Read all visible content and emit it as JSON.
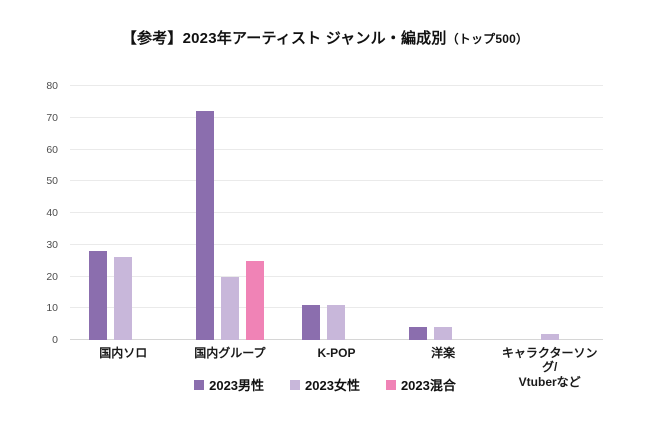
{
  "header": {
    "title_main": "【参考】2023年アーティスト ジャンル・編成別",
    "title_suffix": "（トップ500）"
  },
  "colors": {
    "male": "#8b6eae",
    "female": "#c8b7da",
    "mixed": "#f083b6",
    "grid": "#eaeaea",
    "baseline": "#d6d6d6",
    "tick_text": "#4d4d4d",
    "label_text": "#1a1a1a"
  },
  "chart_data": {
    "type": "bar",
    "title": "【参考】2023年アーティスト ジャンル・編成別（トップ500）",
    "categories": [
      "国内ソロ",
      "国内グループ",
      "K-POP",
      "洋楽",
      "キャラクターソング/\nVtuberなど"
    ],
    "series": [
      {
        "name": "2023男性",
        "color": "#8b6eae",
        "values": [
          28,
          72,
          11,
          4,
          0
        ]
      },
      {
        "name": "2023女性",
        "color": "#c8b7da",
        "values": [
          26,
          20,
          11,
          4,
          2
        ]
      },
      {
        "name": "2023混合",
        "color": "#f083b6",
        "values": [
          0,
          25,
          0,
          0,
          0
        ]
      }
    ],
    "xlabel": "",
    "ylabel": "",
    "ylim": [
      0,
      80
    ],
    "yticks": [
      0,
      10,
      20,
      30,
      40,
      50,
      60,
      70,
      80
    ],
    "grid": true,
    "legend_position": "bottom"
  }
}
